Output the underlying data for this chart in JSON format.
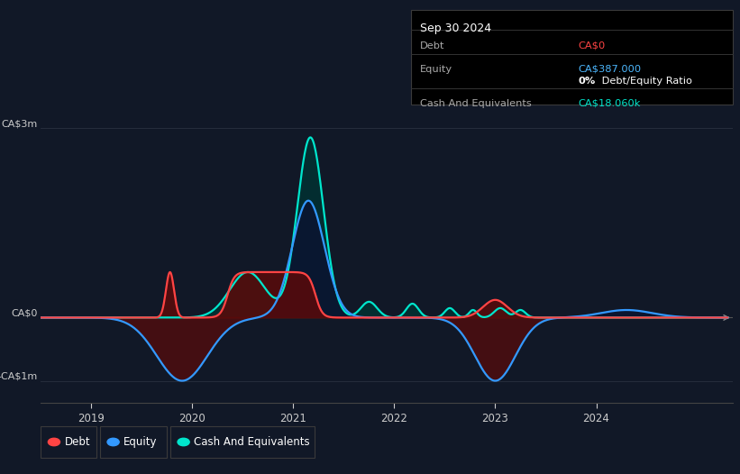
{
  "background_color": "#111827",
  "plot_bg_color": "#111827",
  "grid_color": "#2a3040",
  "info_box": {
    "date": "Sep 30 2024",
    "debt_label": "Debt",
    "debt_value": "CA$0",
    "debt_color": "#ff4444",
    "equity_label": "Equity",
    "equity_value": "CA$387.000",
    "equity_color": "#4db8ff",
    "ratio_bold": "0%",
    "ratio_rest": " Debt/Equity Ratio",
    "cash_label": "Cash And Equivalents",
    "cash_value": "CA$18.060k",
    "cash_color": "#00e5cc"
  },
  "y_label_color": "#cccccc",
  "x_labels": [
    "2019",
    "2020",
    "2021",
    "2022",
    "2023",
    "2024"
  ],
  "debt_color": "#ff4444",
  "equity_color": "#3399ff",
  "cash_color": "#00e5cc",
  "debt_fill_color": "#5a0a0a",
  "equity_fill_pos_color": "#0a1530",
  "equity_fill_neg_color": "#5a0a0a",
  "cash_fill_color": "#003333",
  "legend_items": [
    "Debt",
    "Equity",
    "Cash And Equivalents"
  ]
}
